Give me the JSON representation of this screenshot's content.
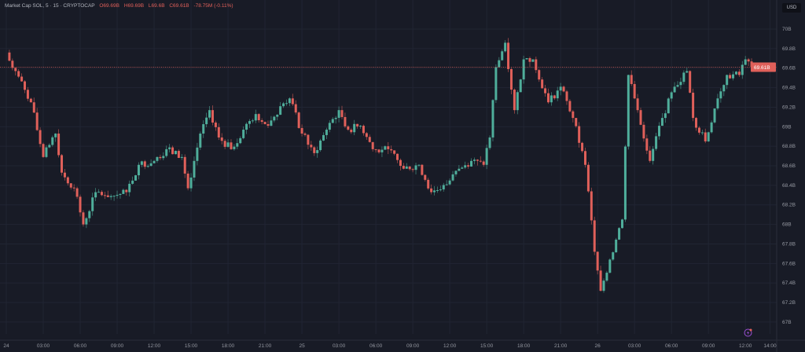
{
  "legend": {
    "symbol": "Market Cap SOL, 5 · 15 · CRYPTOCAP",
    "open": "O69.69B",
    "high": "H69.69B",
    "low": "L69.6B",
    "close": "C69.61B",
    "change": "-78.75M (-0.11%)"
  },
  "currency_button": "USD",
  "colors": {
    "background": "#181b26",
    "up": "#4fae9b",
    "down": "#e0605a",
    "grid": "#212533",
    "text": "#9598a1"
  },
  "chart_data": {
    "type": "candlestick",
    "title": "Market Cap SOL",
    "interval": "15",
    "ylim": [
      66.9,
      70.1
    ],
    "y_ticks": [
      "70B",
      "69.8B",
      "69.6B",
      "69.4B",
      "69.2B",
      "69B",
      "68.8B",
      "68.6B",
      "68.4B",
      "68.2B",
      "68B",
      "67.8B",
      "67.6B",
      "67.4B",
      "67.2B",
      "67B"
    ],
    "y_tick_values": [
      70,
      69.8,
      69.6,
      69.4,
      69.2,
      69,
      68.8,
      68.6,
      68.4,
      68.2,
      68,
      67.8,
      67.6,
      67.4,
      67.2,
      67
    ],
    "x_ticks": [
      "24",
      "03:00",
      "06:00",
      "09:00",
      "12:00",
      "15:00",
      "18:00",
      "21:00",
      "25",
      "03:00",
      "06:00",
      "09:00",
      "12:00",
      "15:00",
      "18:00",
      "21:00",
      "26",
      "03:00",
      "06:00",
      "09:00",
      "12:00",
      "14:00"
    ],
    "x_tick_times": [
      "24 00:00",
      "24 03:00",
      "24 06:00",
      "24 09:00",
      "24 12:00",
      "24 15:00",
      "24 18:00",
      "24 21:00",
      "25 00:00",
      "25 03:00",
      "25 06:00",
      "25 09:00",
      "25 12:00",
      "25 15:00",
      "25 18:00",
      "25 21:00",
      "26 00:00",
      "26 03:00",
      "26 06:00",
      "26 09:00",
      "26 12:00",
      "26 14:00"
    ],
    "last_price": 69.61,
    "last_price_label": "69.61B",
    "grid": true,
    "closes": [
      [
        "24 00:00",
        69.73
      ],
      [
        "24 00:45",
        69.57
      ],
      [
        "24 02:00",
        69.25
      ],
      [
        "24 03:00",
        68.69
      ],
      [
        "24 04:00",
        68.93
      ],
      [
        "24 04:30",
        68.53
      ],
      [
        "24 05:30",
        68.37
      ],
      [
        "24 06:15",
        68.0
      ],
      [
        "24 07:15",
        68.33
      ],
      [
        "24 08:30",
        68.29
      ],
      [
        "24 09:45",
        68.33
      ],
      [
        "24 10:45",
        68.61
      ],
      [
        "24 12:00",
        68.65
      ],
      [
        "24 13:00",
        68.77
      ],
      [
        "24 14:15",
        68.69
      ],
      [
        "24 14:45",
        68.37
      ],
      [
        "24 15:45",
        68.93
      ],
      [
        "24 16:30",
        69.17
      ],
      [
        "24 17:15",
        68.89
      ],
      [
        "24 18:15",
        68.77
      ],
      [
        "24 19:15",
        68.97
      ],
      [
        "24 20:15",
        69.13
      ],
      [
        "24 21:15",
        69.01
      ],
      [
        "24 22:15",
        69.21
      ],
      [
        "24 23:00",
        69.29
      ],
      [
        "25 00:00",
        68.93
      ],
      [
        "25 01:00",
        68.73
      ],
      [
        "25 02:00",
        68.97
      ],
      [
        "25 03:00",
        69.17
      ],
      [
        "25 03:45",
        68.97
      ],
      [
        "25 04:45",
        69.01
      ],
      [
        "25 05:45",
        68.77
      ],
      [
        "25 07:00",
        68.77
      ],
      [
        "25 08:15",
        68.57
      ],
      [
        "25 09:30",
        68.61
      ],
      [
        "25 10:30",
        68.33
      ],
      [
        "25 11:45",
        68.41
      ],
      [
        "25 12:45",
        68.57
      ],
      [
        "25 13:45",
        68.65
      ],
      [
        "25 14:45",
        68.61
      ],
      [
        "25 15:15",
        68.89
      ],
      [
        "25 15:45",
        69.61
      ],
      [
        "25 16:30",
        69.86
      ],
      [
        "25 17:15",
        69.17
      ],
      [
        "25 18:00",
        69.69
      ],
      [
        "25 18:45",
        69.69
      ],
      [
        "25 20:00",
        69.25
      ],
      [
        "25 21:00",
        69.41
      ],
      [
        "25 22:00",
        69.09
      ],
      [
        "25 23:00",
        68.61
      ],
      [
        "25 23:45",
        67.72
      ],
      [
        "26 00:15",
        67.32
      ],
      [
        "26 01:00",
        67.64
      ],
      [
        "26 02:00",
        68.05
      ],
      [
        "26 02:30",
        69.53
      ],
      [
        "26 03:15",
        69.17
      ],
      [
        "26 04:15",
        68.65
      ],
      [
        "26 05:15",
        69.09
      ],
      [
        "26 06:15",
        69.41
      ],
      [
        "26 07:15",
        69.57
      ],
      [
        "26 07:45",
        69.09
      ],
      [
        "26 08:45",
        68.85
      ],
      [
        "26 09:45",
        69.29
      ],
      [
        "26 10:30",
        69.53
      ],
      [
        "26 11:30",
        69.53
      ],
      [
        "26 12:00",
        69.69
      ],
      [
        "26 12:30",
        69.61
      ]
    ]
  }
}
